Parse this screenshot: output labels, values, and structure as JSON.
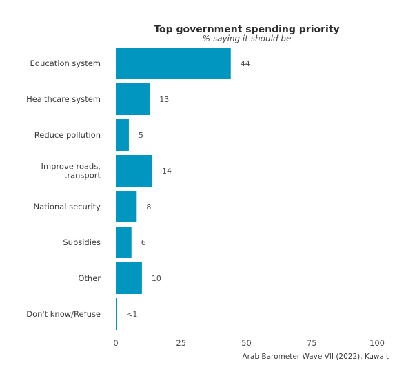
{
  "chart_data": {
    "type": "bar",
    "orientation": "horizontal",
    "title": "Top government spending priority",
    "subtitle": "% saying it should be",
    "categories": [
      [
        "Education system"
      ],
      [
        "Healthcare system"
      ],
      [
        "Reduce pollution"
      ],
      [
        "Improve roads,",
        "transport"
      ],
      [
        "National security"
      ],
      [
        "Subsidies"
      ],
      [
        "Other"
      ],
      [
        "Don't know/Refuse"
      ]
    ],
    "values": [
      44,
      13,
      5,
      14,
      8,
      6,
      10,
      0.3
    ],
    "value_labels": [
      "44",
      "13",
      "5",
      "14",
      "8",
      "6",
      "10",
      "<1"
    ],
    "xlim": [
      0,
      100
    ],
    "xticks": [
      "0",
      "25",
      "50",
      "75",
      "100"
    ],
    "grid": false,
    "colors": {
      "bar": "#0096bf"
    },
    "caption": "Arab Barometer Wave VII (2022), Kuwait"
  }
}
